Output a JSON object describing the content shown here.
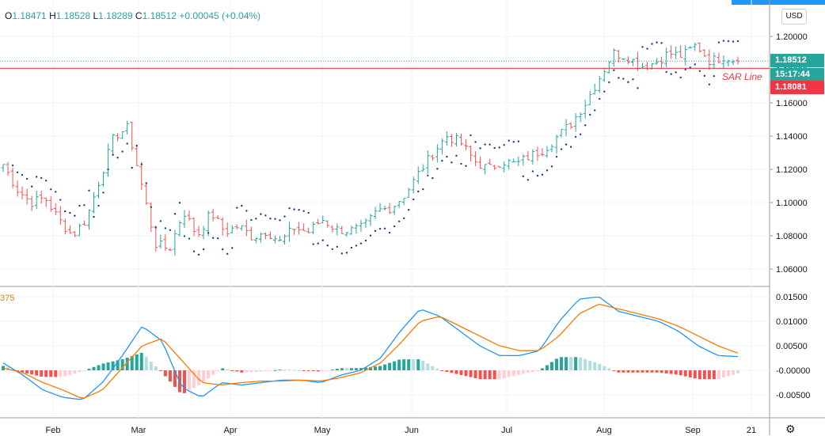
{
  "ohlc": {
    "open_label": "O",
    "open": "1.18471",
    "high_label": "H",
    "high": "1.18528",
    "low_label": "L",
    "low": "1.18289",
    "close_label": "C",
    "close": "1.18512",
    "change": "+0.00045 (+0.04%)"
  },
  "currency": "USD",
  "price_axis": [
    "1.20000",
    "1.18000",
    "1.16000",
    "1.14000",
    "1.12000",
    "1.10000",
    "1.08000",
    "1.06000"
  ],
  "last_price": "1.18512",
  "countdown": "15:17:44",
  "sar_value": "1.18081",
  "sar_label": "SAR Line",
  "indicator_label": "375",
  "macd_axis": [
    "0.01500",
    "0.01000",
    "0.00500",
    "-0.00000",
    "-0.00500"
  ],
  "time_axis": [
    "Feb",
    "Mar",
    "Apr",
    "May",
    "Jun",
    "Jul",
    "Aug",
    "Sep",
    "21"
  ],
  "colors": {
    "up": "#26a69a",
    "down": "#ef5350",
    "sar_line": "#f23645",
    "sar_dots": "#1e3a8a",
    "macd": "#2196f3",
    "signal": "#f57c00",
    "accent": "#2196f3"
  },
  "icons": {
    "settings": "gear-icon"
  },
  "chart_data": [
    {
      "type": "ohlc",
      "title": "",
      "close_anchors": [
        [
          "2021-01-04",
          1.123
        ],
        [
          "2021-01-15",
          1.108
        ],
        [
          "2021-01-25",
          1.1
        ],
        [
          "2021-02-03",
          1.103
        ],
        [
          "2021-02-12",
          1.09
        ],
        [
          "2021-02-22",
          1.08
        ],
        [
          "2021-03-01",
          1.09
        ],
        [
          "2021-03-08",
          1.115
        ],
        [
          "2021-03-16",
          1.14
        ],
        [
          "2021-03-22",
          1.145
        ],
        [
          "2021-03-29",
          1.11
        ],
        [
          "2021-04-05",
          1.075
        ],
        [
          "2021-04-12",
          1.072
        ],
        [
          "2021-04-19",
          1.095
        ],
        [
          "2021-04-26",
          1.08
        ],
        [
          "2021-05-05",
          1.094
        ],
        [
          "2021-05-13",
          1.082
        ],
        [
          "2021-05-20",
          1.086
        ],
        [
          "2021-05-27",
          1.079
        ],
        [
          "2021-06-03",
          1.083
        ],
        [
          "2021-06-10",
          1.076
        ],
        [
          "2021-06-17",
          1.085
        ],
        [
          "2021-06-24",
          1.082
        ],
        [
          "2021-07-01",
          1.09
        ],
        [
          "2021-07-08",
          1.084
        ],
        [
          "2021-07-15",
          1.083
        ],
        [
          "2021-07-22",
          1.085
        ],
        [
          "2021-07-29",
          1.095
        ],
        [
          "2021-08-05",
          1.097
        ],
        [
          "2021-08-12",
          1.105
        ],
        [
          "2021-08-19",
          1.118
        ],
        [
          "2021-08-26",
          1.13
        ],
        [
          "2021-09-02",
          1.14
        ],
        [
          "2021-09-09",
          1.136
        ],
        [
          "2021-09-16",
          1.125
        ],
        [
          "2021-09-23",
          1.12
        ],
        [
          "2021-09-30",
          1.125
        ],
        [
          "2021-10-07",
          1.123
        ],
        [
          "2021-10-14",
          1.128
        ],
        [
          "2021-10-21",
          1.132
        ],
        [
          "2021-10-28",
          1.14
        ],
        [
          "2021-11-04",
          1.148
        ],
        [
          "2021-11-11",
          1.16
        ],
        [
          "2021-11-18",
          1.175
        ],
        [
          "2021-11-25",
          1.19
        ],
        [
          "2021-12-02",
          1.188
        ],
        [
          "2021-12-09",
          1.182
        ],
        [
          "2021-12-16",
          1.184
        ],
        [
          "2021-12-23",
          1.19
        ],
        [
          "2021-12-30",
          1.188
        ],
        [
          "2022-01-06",
          1.195
        ],
        [
          "2022-01-13",
          1.185
        ],
        [
          "2022-01-20",
          1.188
        ],
        [
          "2022-01-27",
          1.185
        ]
      ],
      "last_close": 1.18512,
      "sar_level": 1.18081,
      "ylim": [
        1.05,
        1.205
      ]
    },
    {
      "type": "macd",
      "macd_anchors": [
        0.0015,
        -0.001,
        -0.004,
        -0.0055,
        -0.006,
        -0.0025,
        0.003,
        0.009,
        0.006,
        -0.0035,
        -0.0055,
        -0.0025,
        -0.003,
        -0.0025,
        -0.002,
        -0.002,
        -0.0025,
        -0.001,
        0.0,
        0.0025,
        0.008,
        0.0125,
        0.011,
        0.008,
        0.005,
        0.003,
        0.003,
        0.004,
        0.01,
        0.0145,
        0.015,
        0.012,
        0.011,
        0.01,
        0.008,
        0.005,
        0.003,
        0.0028
      ],
      "signal_anchors": [
        0.0005,
        -0.0005,
        -0.0025,
        -0.004,
        -0.0058,
        -0.004,
        0.0005,
        0.005,
        0.0065,
        0.002,
        -0.0025,
        -0.003,
        -0.0025,
        -0.0022,
        -0.0022,
        -0.002,
        -0.0022,
        -0.0015,
        -0.0005,
        0.0015,
        0.0055,
        0.01,
        0.011,
        0.009,
        0.007,
        0.005,
        0.004,
        0.004,
        0.007,
        0.0115,
        0.0135,
        0.0125,
        0.0115,
        0.0105,
        0.009,
        0.007,
        0.005,
        0.0035
      ],
      "ylim": [
        -0.0085,
        0.018
      ]
    }
  ]
}
